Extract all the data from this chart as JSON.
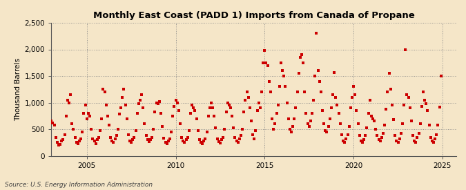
{
  "title": "Monthly East Coast (PADD 1) Imports from Canada of Propane",
  "ylabel": "Thousand Barrels",
  "source": "Source: U.S. Energy Information Administration",
  "marker_color": "#CC0000",
  "background_color": "#F5E6C8",
  "plot_bg_color": "#F5E6C8",
  "ylim": [
    0,
    2500
  ],
  "yticks": [
    0,
    500,
    1000,
    1500,
    2000,
    2500
  ],
  "ytick_labels": [
    "0",
    "500",
    "1,000",
    "1,500",
    "2,000",
    "2,500"
  ],
  "xlim_start": 2003.0,
  "xlim_end": 2025.8,
  "xticks": [
    2005,
    2010,
    2015,
    2020,
    2025
  ],
  "data": [
    [
      2003.0,
      650
    ],
    [
      2003.083,
      620
    ],
    [
      2003.167,
      580
    ],
    [
      2003.25,
      350
    ],
    [
      2003.333,
      250
    ],
    [
      2003.417,
      200
    ],
    [
      2003.5,
      220
    ],
    [
      2003.583,
      280
    ],
    [
      2003.667,
      300
    ],
    [
      2003.75,
      400
    ],
    [
      2003.833,
      750
    ],
    [
      2003.917,
      1050
    ],
    [
      2004.0,
      1000
    ],
    [
      2004.083,
      1150
    ],
    [
      2004.167,
      600
    ],
    [
      2004.25,
      500
    ],
    [
      2004.333,
      350
    ],
    [
      2004.417,
      250
    ],
    [
      2004.5,
      230
    ],
    [
      2004.583,
      280
    ],
    [
      2004.667,
      320
    ],
    [
      2004.75,
      450
    ],
    [
      2004.833,
      800
    ],
    [
      2004.917,
      950
    ],
    [
      2005.0,
      700
    ],
    [
      2005.083,
      800
    ],
    [
      2005.167,
      750
    ],
    [
      2005.25,
      500
    ],
    [
      2005.333,
      320
    ],
    [
      2005.417,
      280
    ],
    [
      2005.5,
      230
    ],
    [
      2005.583,
      300
    ],
    [
      2005.667,
      350
    ],
    [
      2005.75,
      480
    ],
    [
      2005.833,
      700
    ],
    [
      2005.917,
      1250
    ],
    [
      2006.0,
      1200
    ],
    [
      2006.083,
      950
    ],
    [
      2006.167,
      750
    ],
    [
      2006.25,
      580
    ],
    [
      2006.333,
      350
    ],
    [
      2006.417,
      280
    ],
    [
      2006.5,
      250
    ],
    [
      2006.583,
      320
    ],
    [
      2006.667,
      380
    ],
    [
      2006.75,
      500
    ],
    [
      2006.833,
      780
    ],
    [
      2006.917,
      900
    ],
    [
      2007.0,
      1100
    ],
    [
      2007.083,
      1250
    ],
    [
      2007.167,
      950
    ],
    [
      2007.25,
      700
    ],
    [
      2007.333,
      400
    ],
    [
      2007.417,
      280
    ],
    [
      2007.5,
      250
    ],
    [
      2007.583,
      300
    ],
    [
      2007.667,
      350
    ],
    [
      2007.75,
      480
    ],
    [
      2007.833,
      800
    ],
    [
      2007.917,
      980
    ],
    [
      2008.0,
      1050
    ],
    [
      2008.083,
      1150
    ],
    [
      2008.167,
      900
    ],
    [
      2008.25,
      600
    ],
    [
      2008.333,
      380
    ],
    [
      2008.417,
      300
    ],
    [
      2008.5,
      260
    ],
    [
      2008.583,
      310
    ],
    [
      2008.667,
      350
    ],
    [
      2008.75,
      500
    ],
    [
      2008.833,
      820
    ],
    [
      2008.917,
      1000
    ],
    [
      2009.0,
      980
    ],
    [
      2009.083,
      1020
    ],
    [
      2009.167,
      800
    ],
    [
      2009.25,
      550
    ],
    [
      2009.333,
      330
    ],
    [
      2009.417,
      250
    ],
    [
      2009.5,
      230
    ],
    [
      2009.583,
      280
    ],
    [
      2009.667,
      320
    ],
    [
      2009.75,
      450
    ],
    [
      2009.833,
      750
    ],
    [
      2009.917,
      930
    ],
    [
      2010.0,
      1050
    ],
    [
      2010.083,
      1000
    ],
    [
      2010.167,
      850
    ],
    [
      2010.25,
      600
    ],
    [
      2010.333,
      350
    ],
    [
      2010.417,
      280
    ],
    [
      2010.5,
      250
    ],
    [
      2010.583,
      300
    ],
    [
      2010.667,
      350
    ],
    [
      2010.75,
      480
    ],
    [
      2010.833,
      800
    ],
    [
      2010.917,
      950
    ],
    [
      2011.0,
      900
    ],
    [
      2011.083,
      850
    ],
    [
      2011.167,
      700
    ],
    [
      2011.25,
      480
    ],
    [
      2011.333,
      300
    ],
    [
      2011.417,
      250
    ],
    [
      2011.5,
      230
    ],
    [
      2011.583,
      280
    ],
    [
      2011.667,
      320
    ],
    [
      2011.75,
      450
    ],
    [
      2011.833,
      750
    ],
    [
      2011.917,
      900
    ],
    [
      2012.0,
      1000
    ],
    [
      2012.083,
      900
    ],
    [
      2012.167,
      750
    ],
    [
      2012.25,
      520
    ],
    [
      2012.333,
      320
    ],
    [
      2012.417,
      270
    ],
    [
      2012.5,
      240
    ],
    [
      2012.583,
      300
    ],
    [
      2012.667,
      350
    ],
    [
      2012.75,
      500
    ],
    [
      2012.833,
      820
    ],
    [
      2012.917,
      1000
    ],
    [
      2013.0,
      950
    ],
    [
      2013.083,
      900
    ],
    [
      2013.167,
      750
    ],
    [
      2013.25,
      520
    ],
    [
      2013.333,
      340
    ],
    [
      2013.417,
      280
    ],
    [
      2013.5,
      250
    ],
    [
      2013.583,
      320
    ],
    [
      2013.667,
      380
    ],
    [
      2013.75,
      500
    ],
    [
      2013.833,
      820
    ],
    [
      2013.917,
      1050
    ],
    [
      2014.0,
      1200
    ],
    [
      2014.083,
      1100
    ],
    [
      2014.167,
      900
    ],
    [
      2014.25,
      650
    ],
    [
      2014.333,
      400
    ],
    [
      2014.417,
      320
    ],
    [
      2014.5,
      480
    ],
    [
      2014.583,
      850
    ],
    [
      2014.667,
      1000
    ],
    [
      2014.75,
      900
    ],
    [
      2014.833,
      1200
    ],
    [
      2014.917,
      1750
    ],
    [
      2015.0,
      1980
    ],
    [
      2015.083,
      1750
    ],
    [
      2015.167,
      1700
    ],
    [
      2015.25,
      1400
    ],
    [
      2015.333,
      1200
    ],
    [
      2015.417,
      700
    ],
    [
      2015.5,
      500
    ],
    [
      2015.583,
      600
    ],
    [
      2015.667,
      800
    ],
    [
      2015.75,
      950
    ],
    [
      2015.833,
      1300
    ],
    [
      2015.917,
      1750
    ],
    [
      2016.0,
      1600
    ],
    [
      2016.083,
      1500
    ],
    [
      2016.167,
      1300
    ],
    [
      2016.25,
      1000
    ],
    [
      2016.333,
      700
    ],
    [
      2016.417,
      500
    ],
    [
      2016.5,
      450
    ],
    [
      2016.583,
      550
    ],
    [
      2016.667,
      700
    ],
    [
      2016.75,
      900
    ],
    [
      2016.833,
      1200
    ],
    [
      2016.917,
      1550
    ],
    [
      2017.0,
      1850
    ],
    [
      2017.083,
      1900
    ],
    [
      2017.167,
      1750
    ],
    [
      2017.25,
      1200
    ],
    [
      2017.333,
      800
    ],
    [
      2017.417,
      600
    ],
    [
      2017.5,
      550
    ],
    [
      2017.583,
      650
    ],
    [
      2017.667,
      800
    ],
    [
      2017.75,
      1050
    ],
    [
      2017.833,
      1500
    ],
    [
      2017.917,
      2300
    ],
    [
      2018.0,
      1600
    ],
    [
      2018.083,
      1400
    ],
    [
      2018.167,
      1200
    ],
    [
      2018.25,
      850
    ],
    [
      2018.333,
      600
    ],
    [
      2018.417,
      480
    ],
    [
      2018.5,
      450
    ],
    [
      2018.583,
      550
    ],
    [
      2018.667,
      700
    ],
    [
      2018.75,
      900
    ],
    [
      2018.833,
      1150
    ],
    [
      2018.917,
      1560
    ],
    [
      2019.0,
      1100
    ],
    [
      2019.083,
      950
    ],
    [
      2019.167,
      800
    ],
    [
      2019.25,
      600
    ],
    [
      2019.333,
      400
    ],
    [
      2019.417,
      280
    ],
    [
      2019.5,
      250
    ],
    [
      2019.583,
      320
    ],
    [
      2019.667,
      400
    ],
    [
      2019.75,
      550
    ],
    [
      2019.833,
      900
    ],
    [
      2019.917,
      1100
    ],
    [
      2020.0,
      1300
    ],
    [
      2020.083,
      1150
    ],
    [
      2020.167,
      850
    ],
    [
      2020.25,
      600
    ],
    [
      2020.333,
      380
    ],
    [
      2020.417,
      280
    ],
    [
      2020.5,
      250
    ],
    [
      2020.583,
      300
    ],
    [
      2020.667,
      380
    ],
    [
      2020.75,
      520
    ],
    [
      2020.833,
      800
    ],
    [
      2020.917,
      1050
    ],
    [
      2021.0,
      750
    ],
    [
      2021.083,
      700
    ],
    [
      2021.167,
      650
    ],
    [
      2021.25,
      500
    ],
    [
      2021.333,
      380
    ],
    [
      2021.417,
      300
    ],
    [
      2021.5,
      280
    ],
    [
      2021.583,
      350
    ],
    [
      2021.667,
      420
    ],
    [
      2021.75,
      580
    ],
    [
      2021.833,
      880
    ],
    [
      2021.917,
      1200
    ],
    [
      2022.0,
      1550
    ],
    [
      2022.083,
      1250
    ],
    [
      2022.167,
      950
    ],
    [
      2022.25,
      680
    ],
    [
      2022.333,
      380
    ],
    [
      2022.417,
      280
    ],
    [
      2022.5,
      250
    ],
    [
      2022.583,
      320
    ],
    [
      2022.667,
      420
    ],
    [
      2022.75,
      600
    ],
    [
      2022.833,
      950
    ],
    [
      2022.917,
      2000
    ],
    [
      2023.0,
      1150
    ],
    [
      2023.083,
      1100
    ],
    [
      2023.167,
      900
    ],
    [
      2023.25,
      650
    ],
    [
      2023.333,
      380
    ],
    [
      2023.417,
      280
    ],
    [
      2023.5,
      250
    ],
    [
      2023.583,
      350
    ],
    [
      2023.667,
      420
    ],
    [
      2023.75,
      600
    ],
    [
      2023.833,
      930
    ],
    [
      2023.917,
      1200
    ],
    [
      2024.0,
      1050
    ],
    [
      2024.083,
      980
    ],
    [
      2024.167,
      850
    ],
    [
      2024.25,
      580
    ],
    [
      2024.333,
      350
    ],
    [
      2024.417,
      280
    ],
    [
      2024.5,
      250
    ],
    [
      2024.583,
      320
    ],
    [
      2024.667,
      400
    ],
    [
      2024.75,
      580
    ],
    [
      2024.833,
      920
    ],
    [
      2024.917,
      1500
    ]
  ]
}
